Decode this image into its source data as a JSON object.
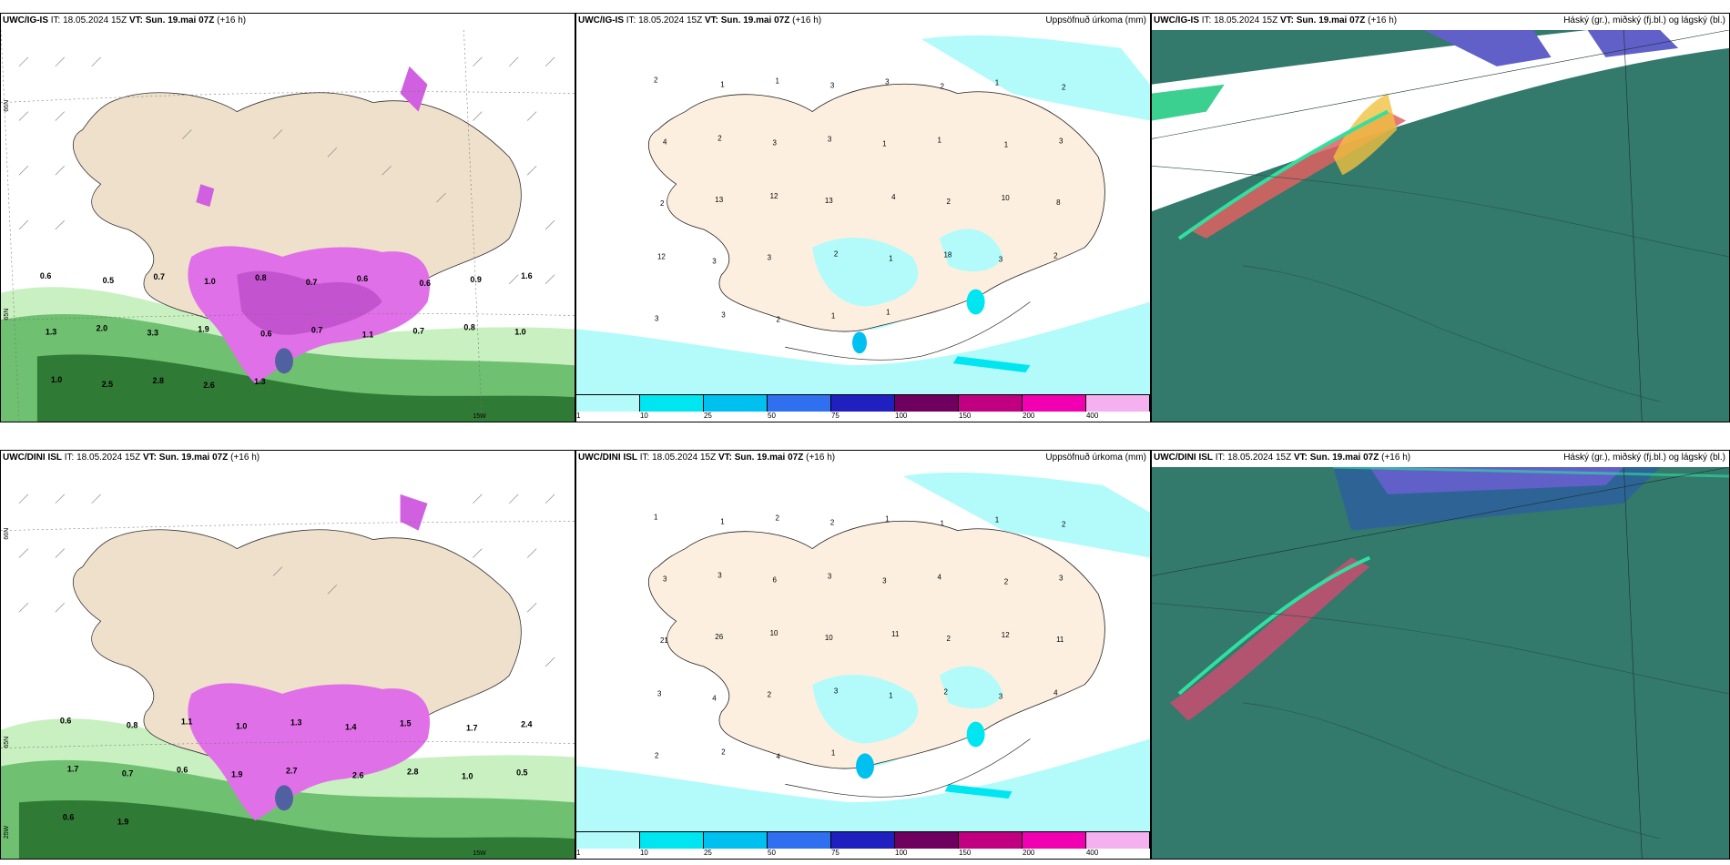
{
  "rows": [
    {
      "model": "UWC/IG-IS",
      "it_label": "IT:",
      "it_value": "18.05.2024 15Z",
      "vt_label": "VT:",
      "vt_value": "Sun. 19.mai 07Z",
      "lead": "(+16 h)"
    },
    {
      "model": "UWC/DINI ISL",
      "it_label": "IT:",
      "it_value": "18.05.2024 15Z",
      "vt_label": "VT:",
      "vt_value": "Sun. 19.mai 07Z",
      "lead": "(+16 h)"
    }
  ],
  "precip_title": "Uppsöfnuð úrkoma (mm)",
  "cloud_title": "Háský (gr.), miðský (fj.bl.) og lágský (bl.)",
  "colorbar": {
    "colors": [
      "#b3fbfb",
      "#00e6f0",
      "#00c0f0",
      "#3070f0",
      "#2020c0",
      "#700060",
      "#c00080",
      "#f000b0",
      "#f5b0f0"
    ],
    "labels": [
      "1",
      "10",
      "25",
      "50",
      "75",
      "100",
      "150",
      "200",
      "400"
    ]
  },
  "axis_labels": {
    "lat_65": "65N",
    "lat_66": "66N",
    "lon_15w": "15W",
    "lon_25w": "25W"
  },
  "wind_panel_values": {
    "top": [
      "0.6",
      "0.5",
      "0.7",
      "1.0",
      "0.8",
      "0.7",
      "0.6",
      "0.6",
      "0.9",
      "1.6",
      "1.3",
      "2.0",
      "3.3",
      "1.9",
      "0.6",
      "0.7",
      "1.1",
      "0.7",
      "0.8",
      "1.0",
      "1.0",
      "2.5",
      "2.8",
      "2.6",
      "1.3"
    ],
    "bottom": [
      "0.6",
      "0.8",
      "1.1",
      "1.0",
      "1.3",
      "1.4",
      "1.5",
      "1.7",
      "2.4",
      "1.7",
      "0.7",
      "0.6",
      "1.9",
      "2.7",
      "2.6",
      "2.8",
      "1.0",
      "0.5",
      "0.6",
      "1.9"
    ]
  },
  "precip_values": {
    "top": [
      "2",
      "1",
      "1",
      "3",
      "3",
      "2",
      "1",
      "2",
      "4",
      "2",
      "3",
      "3",
      "1",
      "1",
      "1",
      "3",
      "2",
      "13",
      "12",
      "13",
      "4",
      "2",
      "10",
      "8",
      "12",
      "3",
      "3",
      "2",
      "1",
      "18",
      "3",
      "2",
      "3",
      "3",
      "2",
      "1",
      "1"
    ],
    "bottom": [
      "1",
      "1",
      "2",
      "2",
      "1",
      "1",
      "1",
      "2",
      "3",
      "3",
      "6",
      "3",
      "3",
      "4",
      "2",
      "3",
      "21",
      "26",
      "10",
      "10",
      "11",
      "2",
      "12",
      "11",
      "3",
      "4",
      "2",
      "3",
      "1",
      "2",
      "3",
      "4",
      "2",
      "2",
      "4",
      "1"
    ]
  }
}
